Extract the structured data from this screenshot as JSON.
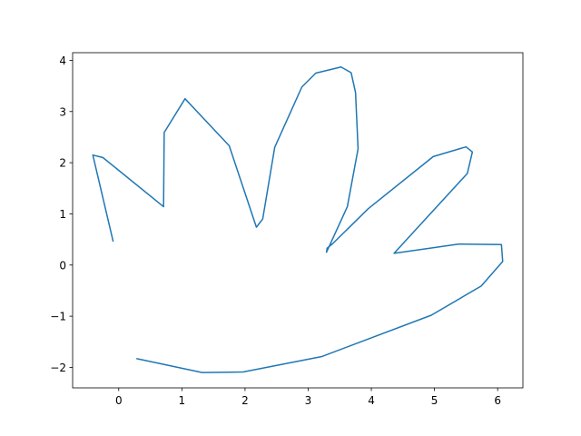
{
  "chart_data": {
    "type": "line",
    "title": "",
    "xlabel": "",
    "ylabel": "",
    "xlim": [
      -0.73,
      6.4
    ],
    "ylim": [
      -2.4,
      4.15
    ],
    "xticks": [
      0,
      1,
      2,
      3,
      4,
      5,
      6
    ],
    "yticks": [
      -2,
      -1,
      0,
      1,
      2,
      3,
      4
    ],
    "xtick_labels": [
      "0",
      "1",
      "2",
      "3",
      "4",
      "5",
      "6"
    ],
    "ytick_labels": [
      "−2",
      "−1",
      "0",
      "1",
      "2",
      "3",
      "4"
    ],
    "grid": false,
    "line_color": "#1f77b4",
    "series": [
      {
        "x": [
          -0.09,
          -0.41,
          -0.25,
          0.71,
          0.72,
          1.05,
          1.75,
          2.18,
          2.28,
          2.47,
          2.9,
          3.12,
          3.52,
          3.68,
          3.75,
          3.79,
          3.62,
          3.29,
          3.3,
          3.39,
          3.95,
          4.98,
          5.5,
          5.6,
          5.52,
          4.36,
          5.38,
          6.06,
          6.08,
          5.74,
          4.95,
          3.21,
          1.97,
          1.32,
          0.29
        ],
        "y": [
          0.47,
          2.15,
          2.1,
          1.14,
          2.59,
          3.25,
          2.33,
          0.74,
          0.9,
          2.3,
          3.48,
          3.75,
          3.87,
          3.76,
          3.37,
          2.27,
          1.14,
          0.25,
          0.33,
          0.42,
          1.1,
          2.12,
          2.31,
          2.21,
          1.79,
          0.23,
          0.41,
          0.4,
          0.07,
          -0.41,
          -0.98,
          -1.79,
          -2.09,
          -2.1,
          -1.83
        ]
      }
    ]
  }
}
